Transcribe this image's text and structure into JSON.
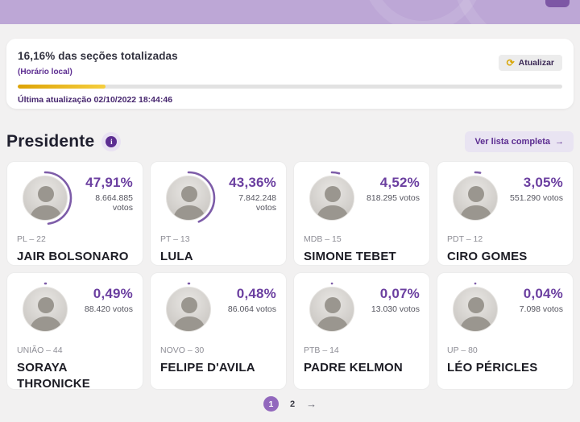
{
  "header": {
    "bar_color": "#bda7d6",
    "cut_button_color": "#7d57a5"
  },
  "totalization": {
    "title": "16,16% das seções totalizadas",
    "subtitle": "(Horário local)",
    "progress_percent": 16.16,
    "last_update": "Última atualização 02/10/2022 18:44:46",
    "refresh_label": "Atualizar",
    "refresh_icon": "⟳"
  },
  "section": {
    "title": "Presidente",
    "info_icon": "i",
    "view_full_list_label": "Ver lista completa",
    "arrow": "→"
  },
  "candidates": [
    {
      "name": "JAIR BOLSONARO",
      "party": "PL – 22",
      "percent": "47,91%",
      "percent_value": 47.91,
      "votes": "8.664.885 votos"
    },
    {
      "name": "LULA",
      "party": "PT – 13",
      "percent": "43,36%",
      "percent_value": 43.36,
      "votes": "7.842.248 votos"
    },
    {
      "name": "SIMONE TEBET",
      "party": "MDB – 15",
      "percent": "4,52%",
      "percent_value": 4.52,
      "votes": "818.295 votos"
    },
    {
      "name": "CIRO GOMES",
      "party": "PDT – 12",
      "percent": "3,05%",
      "percent_value": 3.05,
      "votes": "551.290 votos"
    },
    {
      "name": "SORAYA THRONICKE",
      "party": "UNIÃO – 44",
      "percent": "0,49%",
      "percent_value": 0.49,
      "votes": "88.420 votos"
    },
    {
      "name": "FELIPE D'AVILA",
      "party": "NOVO – 30",
      "percent": "0,48%",
      "percent_value": 0.48,
      "votes": "86.064 votos"
    },
    {
      "name": "PADRE KELMON",
      "party": "PTB – 14",
      "percent": "0,07%",
      "percent_value": 0.07,
      "votes": "13.030 votos"
    },
    {
      "name": "LÉO PÉRICLES",
      "party": "UP – 80",
      "percent": "0,04%",
      "percent_value": 0.04,
      "votes": "7.098 votos"
    }
  ],
  "pagination": {
    "active_page": "1",
    "page_2": "2",
    "next_arrow": "→"
  },
  "colors": {
    "accent_purple": "#5c2d91",
    "percent_purple": "#6b3fa0",
    "ring_purple": "#7d5ca8",
    "progress_yellow": "#eab00d",
    "background": "#f2f1f1",
    "active_page_circle": "#9268bd"
  }
}
